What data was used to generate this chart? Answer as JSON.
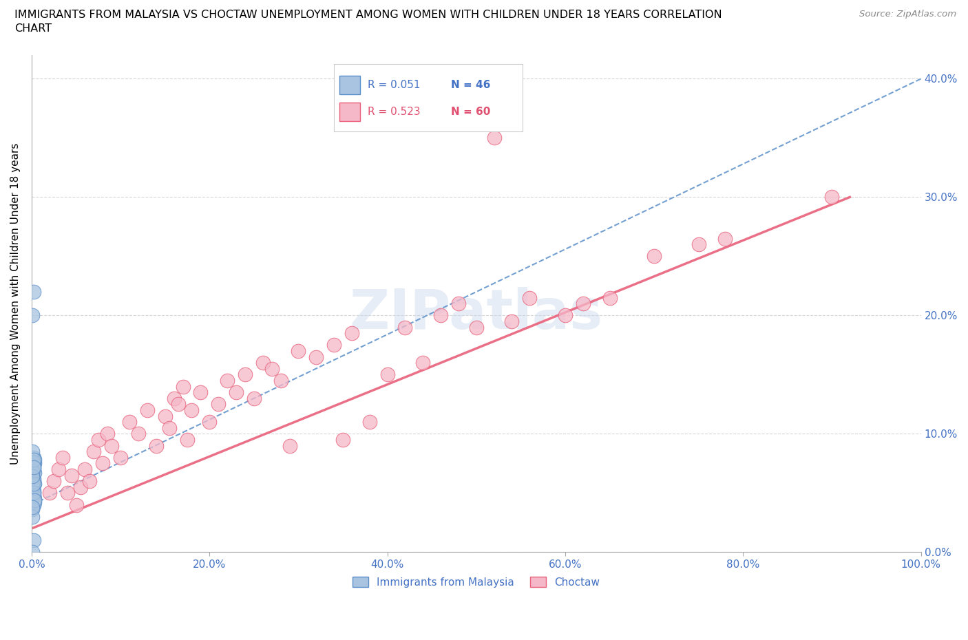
{
  "title": "IMMIGRANTS FROM MALAYSIA VS CHOCTAW UNEMPLOYMENT AMONG WOMEN WITH CHILDREN UNDER 18 YEARS CORRELATION\nCHART",
  "source": "Source: ZipAtlas.com",
  "ylabel": "Unemployment Among Women with Children Under 18 years",
  "watermark": "ZIPatlas",
  "legend1_r": "0.051",
  "legend1_n": "46",
  "legend2_r": "0.523",
  "legend2_n": "60",
  "blue_fill": "#A8C4E0",
  "blue_edge": "#5B8FC9",
  "pink_fill": "#F5B8C8",
  "pink_edge": "#E8607A",
  "blue_text": "#4472C4",
  "pink_text": "#E05070",
  "axis_color": "#4472C4",
  "xlim": [
    0.0,
    1.0
  ],
  "ylim": [
    0.0,
    0.42
  ],
  "blue_scatter_x": [
    0.001,
    0.002,
    0.001,
    0.003,
    0.002,
    0.001,
    0.002,
    0.003,
    0.001,
    0.002,
    0.001,
    0.002,
    0.003,
    0.001,
    0.002,
    0.001,
    0.002,
    0.001,
    0.003,
    0.002,
    0.001,
    0.002,
    0.001,
    0.002,
    0.003,
    0.001,
    0.002,
    0.001,
    0.002,
    0.001,
    0.002,
    0.001,
    0.003,
    0.002,
    0.001,
    0.002,
    0.001,
    0.002,
    0.003,
    0.001,
    0.002,
    0.001,
    0.002,
    0.001,
    0.002,
    0.001
  ],
  "blue_scatter_y": [
    0.055,
    0.07,
    0.06,
    0.075,
    0.05,
    0.065,
    0.08,
    0.058,
    0.072,
    0.048,
    0.063,
    0.04,
    0.078,
    0.055,
    0.068,
    0.052,
    0.074,
    0.058,
    0.045,
    0.062,
    0.07,
    0.22,
    0.085,
    0.052,
    0.067,
    0.2,
    0.076,
    0.059,
    0.048,
    0.064,
    0.072,
    0.055,
    0.042,
    0.06,
    0.036,
    0.05,
    0.068,
    0.078,
    0.044,
    0.03,
    0.058,
    0.064,
    0.072,
    0.038,
    0.01,
    0.0
  ],
  "pink_scatter_x": [
    0.02,
    0.025,
    0.03,
    0.035,
    0.04,
    0.045,
    0.05,
    0.055,
    0.06,
    0.065,
    0.07,
    0.075,
    0.08,
    0.085,
    0.09,
    0.1,
    0.11,
    0.12,
    0.13,
    0.14,
    0.15,
    0.155,
    0.16,
    0.165,
    0.17,
    0.175,
    0.18,
    0.19,
    0.2,
    0.21,
    0.22,
    0.23,
    0.24,
    0.25,
    0.26,
    0.27,
    0.28,
    0.29,
    0.3,
    0.32,
    0.34,
    0.35,
    0.36,
    0.38,
    0.4,
    0.42,
    0.44,
    0.46,
    0.48,
    0.5,
    0.52,
    0.54,
    0.56,
    0.6,
    0.62,
    0.65,
    0.7,
    0.75,
    0.78,
    0.9
  ],
  "pink_scatter_y": [
    0.05,
    0.06,
    0.07,
    0.08,
    0.05,
    0.065,
    0.04,
    0.055,
    0.07,
    0.06,
    0.085,
    0.095,
    0.075,
    0.1,
    0.09,
    0.08,
    0.11,
    0.1,
    0.12,
    0.09,
    0.115,
    0.105,
    0.13,
    0.125,
    0.14,
    0.095,
    0.12,
    0.135,
    0.11,
    0.125,
    0.145,
    0.135,
    0.15,
    0.13,
    0.16,
    0.155,
    0.145,
    0.09,
    0.17,
    0.165,
    0.175,
    0.095,
    0.185,
    0.11,
    0.15,
    0.19,
    0.16,
    0.2,
    0.21,
    0.19,
    0.35,
    0.195,
    0.215,
    0.2,
    0.21,
    0.215,
    0.25,
    0.26,
    0.265,
    0.3
  ],
  "blue_trend_x": [
    0.0,
    1.0
  ],
  "blue_trend_y": [
    0.04,
    0.4
  ],
  "pink_trend_x": [
    0.0,
    0.92
  ],
  "pink_trend_y": [
    0.02,
    0.3
  ]
}
